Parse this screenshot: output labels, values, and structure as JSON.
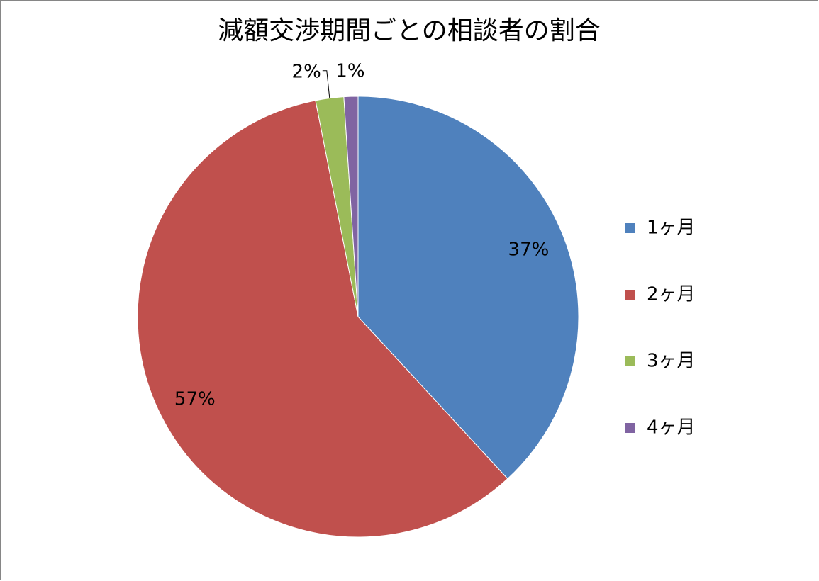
{
  "chart_data": {
    "type": "pie",
    "title": "減額交渉期間ごとの相談者の割合",
    "categories": [
      "1ヶ月",
      "2ヶ月",
      "3ヶ月",
      "4ヶ月"
    ],
    "values": [
      37,
      57,
      2,
      1
    ],
    "value_labels": [
      "37%",
      "57%",
      "2%",
      "1%"
    ],
    "colors": [
      "#4f81bd",
      "#c0504d",
      "#9bbb59",
      "#8064a2"
    ],
    "legend": "right"
  }
}
